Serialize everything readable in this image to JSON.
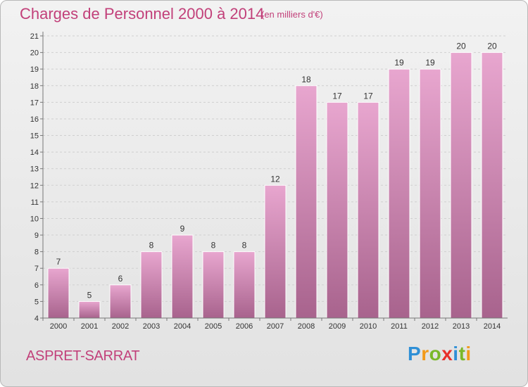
{
  "header": {
    "title": "Charges de Personnel 2000 à 2014",
    "subtitle": "(en milliers d'€)"
  },
  "footer": {
    "commune": "ASPRET-SARRAT",
    "logo": {
      "letters": [
        "P",
        "r",
        "o",
        "x",
        "i",
        "t",
        "i"
      ],
      "colors": [
        "#2e8fd6",
        "#f29a1a",
        "#7ab829",
        "#e8302a",
        "#2e8fd6",
        "#7ab829",
        "#f29a1a"
      ]
    }
  },
  "colors": {
    "bar_top": "#e8a6cf",
    "bar_bottom": "#a8638d",
    "title": "#c2407a"
  },
  "chart_data": {
    "type": "bar",
    "categories": [
      "2000",
      "2001",
      "2002",
      "2003",
      "2004",
      "2005",
      "2006",
      "2007",
      "2008",
      "2009",
      "2010",
      "2011",
      "2012",
      "2013",
      "2014"
    ],
    "values": [
      7,
      5,
      6,
      8,
      9,
      8,
      8,
      12,
      18,
      17,
      17,
      19,
      19,
      20,
      20
    ],
    "ylim": [
      4,
      21
    ],
    "yticks": [
      4,
      5,
      6,
      7,
      8,
      9,
      10,
      11,
      12,
      13,
      14,
      15,
      16,
      17,
      18,
      19,
      20,
      21
    ],
    "grid": true
  }
}
